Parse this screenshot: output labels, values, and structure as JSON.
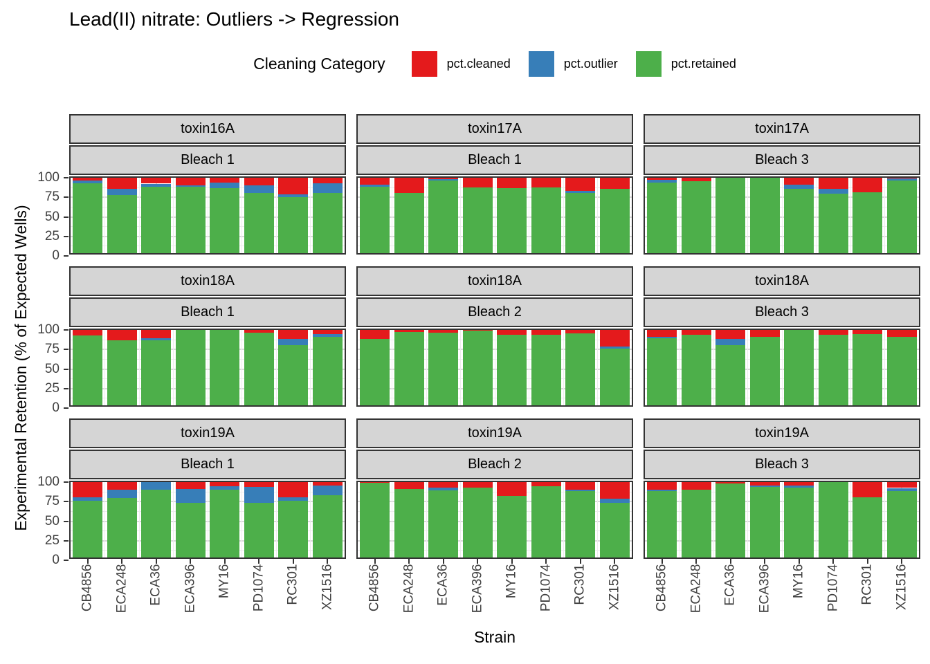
{
  "title": "Lead(II) nitrate: Outliers -> Regression",
  "legend": {
    "title": "Cleaning Category",
    "items": [
      {
        "label": "pct.cleaned",
        "color": "#E41A1C"
      },
      {
        "label": "pct.outlier",
        "color": "#377EB8"
      },
      {
        "label": "pct.retained",
        "color": "#4DAF4A"
      }
    ]
  },
  "axes": {
    "y_title": "Experimental Retention (% of Expected Wells)",
    "x_title": "Strain",
    "y_ticks": [
      100,
      75,
      50,
      25,
      0
    ]
  },
  "chart_data": {
    "type": "bar",
    "stacked": true,
    "orientation": "vertical",
    "title": "Lead(II) nitrate: Outliers -> Regression",
    "xlabel": "Strain",
    "ylabel": "Experimental Retention (% of Expected Wells)",
    "ylim": [
      0,
      100
    ],
    "grid": true,
    "legend_position": "top",
    "categories": [
      "CB4856",
      "ECA248",
      "ECA36",
      "ECA396",
      "MY16",
      "PD1074",
      "RC301",
      "XZ1516"
    ],
    "stack_order_bottom_to_top": [
      "pct.retained",
      "pct.outlier",
      "pct.cleaned"
    ],
    "colors": {
      "pct.cleaned": "#E41A1C",
      "pct.outlier": "#377EB8",
      "pct.retained": "#4DAF4A"
    },
    "facets": [
      {
        "toxin": "toxin16A",
        "bleach": "Bleach 1",
        "series": {
          "pct.retained": [
            89,
            74,
            85,
            85,
            83,
            77,
            72,
            77
          ],
          "pct.outlier": [
            4,
            8,
            4,
            2,
            7,
            10,
            3,
            12
          ],
          "pct.cleaned": [
            7,
            18,
            11,
            13,
            10,
            13,
            25,
            11
          ]
        }
      },
      {
        "toxin": "toxin17A",
        "bleach": "Bleach 1",
        "series": {
          "pct.retained": [
            85,
            77,
            93,
            84,
            83,
            84,
            77,
            82
          ],
          "pct.outlier": [
            3,
            0,
            2,
            0,
            0,
            0,
            3,
            0
          ],
          "pct.cleaned": [
            12,
            23,
            5,
            16,
            17,
            16,
            20,
            18
          ]
        }
      },
      {
        "toxin": "toxin17A",
        "bleach": "Bleach 3",
        "series": {
          "pct.retained": [
            90,
            92,
            99,
            99,
            82,
            76,
            78,
            93
          ],
          "pct.outlier": [
            4,
            0,
            0,
            0,
            6,
            6,
            0,
            3
          ],
          "pct.cleaned": [
            6,
            8,
            1,
            1,
            12,
            18,
            22,
            4
          ]
        }
      },
      {
        "toxin": "toxin18A",
        "bleach": "Bleach 1",
        "series": {
          "pct.retained": [
            89,
            83,
            83,
            97,
            97,
            93,
            77,
            88
          ],
          "pct.outlier": [
            0,
            0,
            3,
            0,
            0,
            0,
            8,
            3
          ],
          "pct.cleaned": [
            11,
            17,
            14,
            3,
            3,
            7,
            15,
            9
          ]
        }
      },
      {
        "toxin": "toxin18A",
        "bleach": "Bleach 2",
        "series": {
          "pct.retained": [
            85,
            94,
            93,
            96,
            90,
            90,
            92,
            73
          ],
          "pct.outlier": [
            0,
            0,
            0,
            0,
            0,
            0,
            0,
            2
          ],
          "pct.cleaned": [
            15,
            6,
            7,
            4,
            10,
            10,
            8,
            25
          ]
        }
      },
      {
        "toxin": "toxin18A",
        "bleach": "Bleach 3",
        "series": {
          "pct.retained": [
            86,
            90,
            77,
            88,
            97,
            90,
            91,
            88
          ],
          "pct.outlier": [
            2,
            0,
            8,
            0,
            0,
            0,
            0,
            0
          ],
          "pct.cleaned": [
            12,
            10,
            15,
            12,
            3,
            10,
            9,
            12
          ]
        }
      },
      {
        "toxin": "toxin19A",
        "bleach": "Bleach 1",
        "series": {
          "pct.retained": [
            73,
            76,
            87,
            70,
            87,
            70,
            73,
            80
          ],
          "pct.outlier": [
            4,
            11,
            10,
            18,
            4,
            20,
            4,
            12
          ],
          "pct.cleaned": [
            23,
            13,
            3,
            12,
            9,
            10,
            23,
            8
          ]
        }
      },
      {
        "toxin": "toxin19A",
        "bleach": "Bleach 2",
        "series": {
          "pct.retained": [
            96,
            88,
            86,
            89,
            79,
            91,
            85,
            70
          ],
          "pct.outlier": [
            0,
            0,
            3,
            0,
            0,
            0,
            2,
            5
          ],
          "pct.cleaned": [
            4,
            12,
            11,
            11,
            21,
            9,
            13,
            25
          ]
        }
      },
      {
        "toxin": "toxin19A",
        "bleach": "Bleach 3",
        "series": {
          "pct.retained": [
            85,
            87,
            95,
            90,
            89,
            97,
            77,
            85
          ],
          "pct.outlier": [
            2,
            0,
            0,
            2,
            3,
            0,
            0,
            4
          ],
          "pct.cleaned": [
            13,
            13,
            5,
            8,
            8,
            3,
            23,
            11
          ]
        }
      }
    ]
  }
}
